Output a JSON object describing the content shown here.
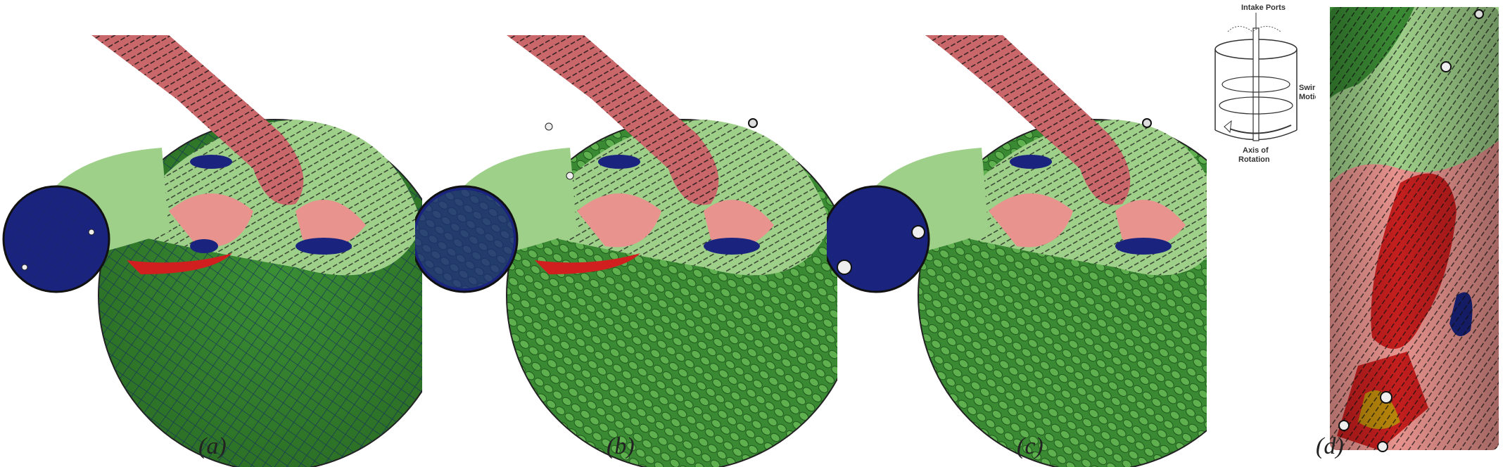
{
  "figure": {
    "panels": [
      {
        "id": "a",
        "caption": "(a)"
      },
      {
        "id": "b",
        "caption": "(b)"
      },
      {
        "id": "c",
        "caption": "(c)"
      },
      {
        "id": "d",
        "caption": "(d)"
      }
    ],
    "inset": {
      "intake_ports": "Intake Ports",
      "swirl_motion_1": "Swirl",
      "swirl_motion_2": "Motion",
      "axis_1": "Axis of",
      "axis_2": "Rotation"
    },
    "colors": {
      "dark_green": "#2f7a2a",
      "light_green": "#9fd08a",
      "pink": "#e8938e",
      "red": "#d11f1f",
      "navy": "#1a237e",
      "yellow": "#d8c53a"
    }
  }
}
